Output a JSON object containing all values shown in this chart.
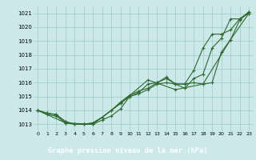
{
  "background_color": "#cce8e8",
  "plot_bg_color": "#cce8e8",
  "grid_color": "#99cccc",
  "line_color": "#2d6a2d",
  "footer_bg": "#2d6a2d",
  "footer_text": "Graphe pression niveau de la mer (hPa)",
  "footer_text_color": "#ffffff",
  "xlim": [
    -0.5,
    23.5
  ],
  "ylim": [
    1012.5,
    1021.5
  ],
  "yticks": [
    1013,
    1014,
    1015,
    1016,
    1017,
    1018,
    1019,
    1020,
    1021
  ],
  "xticks": [
    0,
    1,
    2,
    3,
    4,
    5,
    6,
    7,
    8,
    9,
    10,
    11,
    12,
    13,
    14,
    15,
    16,
    17,
    18,
    19,
    20,
    21,
    22,
    23
  ],
  "series": [
    {
      "x": [
        0,
        1,
        2,
        3,
        4,
        5,
        6,
        7,
        8,
        9,
        10,
        11,
        12,
        13,
        14,
        15,
        16,
        17,
        18,
        19,
        20,
        21,
        22,
        23
      ],
      "y": [
        1014.0,
        1013.7,
        1013.6,
        1013.1,
        1013.0,
        1013.0,
        1013.0,
        1013.3,
        1013.6,
        1014.1,
        1015.0,
        1015.3,
        1015.9,
        1016.0,
        1016.4,
        1015.9,
        1015.9,
        1016.0,
        1015.9,
        1016.0,
        1018.2,
        1019.1,
        1020.5,
        1021.1
      ]
    },
    {
      "x": [
        0,
        1,
        2,
        3,
        4,
        5,
        6,
        7,
        8,
        9,
        10,
        11,
        12,
        13,
        14,
        15,
        16,
        17,
        18,
        19,
        20,
        21,
        22,
        23
      ],
      "y": [
        1014.0,
        1013.8,
        1013.7,
        1013.2,
        1013.0,
        1013.0,
        1013.1,
        1013.5,
        1014.0,
        1014.6,
        1015.1,
        1015.4,
        1015.6,
        1016.0,
        1016.3,
        1015.9,
        1015.6,
        1016.3,
        1016.6,
        1018.5,
        1019.2,
        1020.6,
        1020.6,
        1021.1
      ]
    },
    {
      "x": [
        0,
        1,
        2,
        3,
        4,
        5,
        6,
        7,
        8,
        9,
        10,
        11,
        12,
        13,
        14,
        15,
        16,
        17,
        18,
        19,
        20,
        21,
        22,
        23
      ],
      "y": [
        1014.0,
        1013.8,
        1013.7,
        1013.2,
        1013.0,
        1013.0,
        1013.1,
        1013.5,
        1014.0,
        1014.5,
        1015.0,
        1015.2,
        1015.5,
        1015.9,
        1016.0,
        1015.9,
        1015.9,
        1016.9,
        1018.5,
        1019.5,
        1019.5,
        1019.8,
        1020.6,
        1021.0
      ]
    },
    {
      "x": [
        0,
        3,
        6,
        9,
        12,
        15,
        18,
        21,
        23
      ],
      "y": [
        1014.0,
        1013.1,
        1013.0,
        1014.5,
        1016.2,
        1015.5,
        1015.9,
        1019.1,
        1021.0
      ]
    }
  ]
}
